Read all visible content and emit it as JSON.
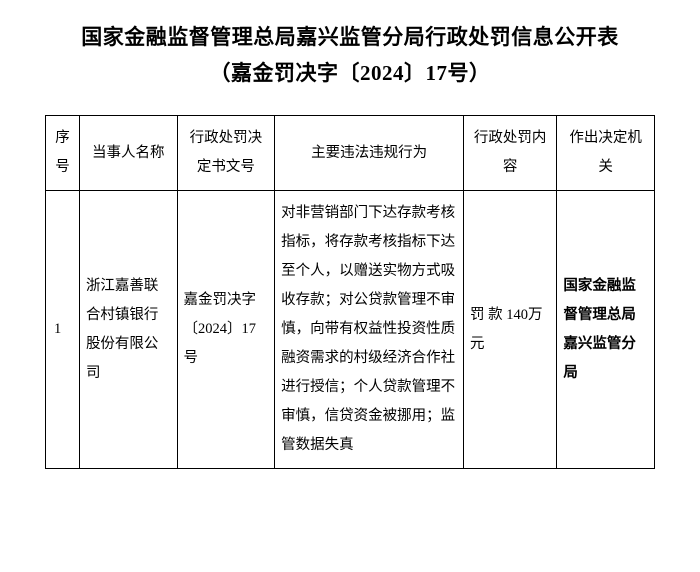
{
  "title_line1": "国家金融监督管理总局嘉兴监管分局行政处罚信息公开表",
  "title_line2": "（嘉金罚决字〔2024〕17号）",
  "columns": {
    "seq": "序号",
    "party": "当事人名称",
    "docno": "行政处罚决定书文号",
    "violation": "主要违法违规行为",
    "penalty": "行政处罚内容",
    "authority": "作出决定机关"
  },
  "rows": [
    {
      "seq": "1",
      "party": "浙江嘉善联合村镇银行股份有限公司",
      "docno": "嘉金罚决字〔2024〕17号",
      "violation": "对非营销部门下达存款考核指标，将存款考核指标下达至个人，以赠送实物方式吸收存款；对公贷款管理不审慎，向带有权益性投资性质融资需求的村级经济合作社进行授信；个人贷款管理不审慎，信贷资金被挪用；监管数据失真",
      "penalty": "罚 款 140万元",
      "authority": "国家金融监督管理总局嘉兴监管分局"
    }
  ]
}
